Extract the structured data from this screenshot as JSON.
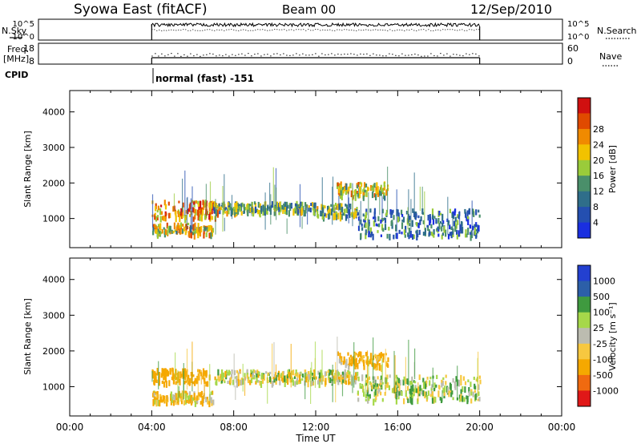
{
  "header": {
    "station": "Syowa East (fitACF)",
    "beam": "Beam 00",
    "date": "12/Sep/2010"
  },
  "panels": {
    "nsky": {
      "label": "N.Sky",
      "right_label": "N.Search",
      "left_ticks": [
        "10^5",
        "10^0"
      ],
      "right_ticks": [
        "10^5",
        "10^0"
      ]
    },
    "freq": {
      "label_line1": "Freq.",
      "label_line2": "[MHz]",
      "right_label": "Nave",
      "left_ticks": [
        "18",
        "8"
      ],
      "right_ticks": [
        "60",
        "0"
      ]
    },
    "cpid": {
      "label": "CPID",
      "mode_text": "normal (fast) -151"
    }
  },
  "colors": {
    "power": [
      "#1a2fe0",
      "#244fb0",
      "#2f6e8a",
      "#4a8f6a",
      "#9acb3a",
      "#f2c200",
      "#f08a00",
      "#e04a00",
      "#d01010"
    ],
    "velocity": [
      "#e01818",
      "#f06a10",
      "#f5a800",
      "#f7c840",
      "#bcbcb0",
      "#a6d84a",
      "#3f9a3f",
      "#2c5fa8",
      "#2340d0"
    ]
  },
  "chart_data": [
    {
      "type": "heatmap",
      "title": "",
      "xlabel": "",
      "ylabel": "Slant Range [km]",
      "x_ticks": [
        "00:00",
        "04:00",
        "08:00",
        "12:00",
        "16:00",
        "20:00",
        "00:00"
      ],
      "xlim_hours": [
        0,
        24
      ],
      "ylim": [
        180,
        4600
      ],
      "y_ticks": [
        1000,
        2000,
        3000,
        4000
      ],
      "colorbar": {
        "label": "Power [dB]",
        "ticks": [
          "4",
          "8",
          "12",
          "16",
          "20",
          "24",
          "28"
        ]
      },
      "data_window_hours": [
        4,
        20
      ],
      "bands": [
        {
          "t": [
            4.0,
            7.2
          ],
          "range_km": [
            1000,
            1500
          ],
          "value_db": 20
        },
        {
          "t": [
            4.0,
            7.0
          ],
          "range_km": [
            550,
            850
          ],
          "value_db": 16
        },
        {
          "t": [
            7.0,
            12.0
          ],
          "range_km": [
            1150,
            1450
          ],
          "value_db": 12
        },
        {
          "t": [
            12.0,
            14.0
          ],
          "range_km": [
            1050,
            1400
          ],
          "value_db": 12
        },
        {
          "t": [
            13.0,
            15.5
          ],
          "range_km": [
            1600,
            2000
          ],
          "value_db": 16
        },
        {
          "t": [
            14.0,
            20.0
          ],
          "range_km": [
            500,
            1250
          ],
          "value_db": 8
        }
      ]
    },
    {
      "type": "heatmap",
      "title": "",
      "xlabel": "Time UT",
      "ylabel": "Slant Range [km]",
      "x_ticks": [
        "00:00",
        "04:00",
        "08:00",
        "12:00",
        "16:00",
        "20:00",
        "00:00"
      ],
      "xlim_hours": [
        0,
        24
      ],
      "ylim": [
        180,
        4600
      ],
      "y_ticks": [
        1000,
        2000,
        3000,
        4000
      ],
      "colorbar": {
        "label": "Velocity [m s⁻¹]",
        "ticks": [
          "1000",
          "500",
          "100",
          "25",
          "-25",
          "-100",
          "-500",
          "-1000"
        ]
      },
      "data_window_hours": [
        4,
        20
      ],
      "bands": [
        {
          "t": [
            4.0,
            6.8
          ],
          "range_km": [
            1100,
            1500
          ],
          "value_ms": -300
        },
        {
          "t": [
            4.0,
            7.0
          ],
          "range_km": [
            550,
            850
          ],
          "value_ms": -100
        },
        {
          "t": [
            7.0,
            14.0
          ],
          "range_km": [
            1100,
            1450
          ],
          "value_ms": 0
        },
        {
          "t": [
            13.0,
            15.5
          ],
          "range_km": [
            1550,
            1950
          ],
          "value_ms": -150
        },
        {
          "t": [
            14.0,
            20.0
          ],
          "range_km": [
            600,
            1300
          ],
          "value_ms": 60
        }
      ]
    }
  ]
}
